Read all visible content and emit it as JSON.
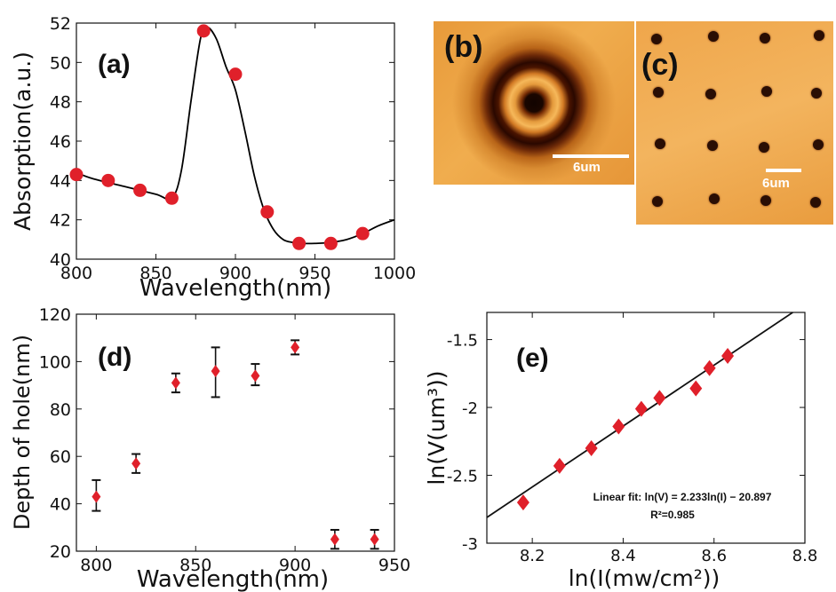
{
  "chart_data": [
    {
      "panel": "(a)",
      "type": "scatter",
      "xlabel": "Wavelength(nm)",
      "ylabel": "Absorption(a.u.)",
      "xlim": [
        800,
        1000
      ],
      "ylim": [
        40,
        52
      ],
      "xticks": [
        800,
        850,
        900,
        950,
        1000
      ],
      "yticks": [
        40,
        42,
        44,
        46,
        48,
        50,
        52
      ],
      "series": [
        {
          "role": "points",
          "color": "#e0202a",
          "x": [
            800,
            820,
            840,
            860,
            880,
            900,
            920,
            940,
            960,
            980
          ],
          "y": [
            44.3,
            44.0,
            43.5,
            43.1,
            51.6,
            49.4,
            42.4,
            40.8,
            40.8,
            41.3
          ]
        },
        {
          "role": "fit-curve",
          "color": "#000000",
          "x": [
            795,
            810,
            830,
            850,
            860,
            866,
            872,
            878,
            882,
            888,
            894,
            900,
            906,
            912,
            918,
            924,
            930,
            936,
            942,
            950,
            960,
            970,
            980,
            990,
            1000
          ],
          "y": [
            44.4,
            44.1,
            43.7,
            43.3,
            43.1,
            44.5,
            48.0,
            51.2,
            51.8,
            51.2,
            49.8,
            48.6,
            46.5,
            44.2,
            42.5,
            41.5,
            41.0,
            40.85,
            40.8,
            40.8,
            40.85,
            41.0,
            41.3,
            41.7,
            42.0
          ]
        }
      ]
    },
    {
      "panel": "(b)",
      "type": "image",
      "scale_bar": "6um"
    },
    {
      "panel": "(c)",
      "type": "image",
      "scale_bar": "6um"
    },
    {
      "panel": "(d)",
      "type": "scatter",
      "xlabel": "Wavelength(nm)",
      "ylabel": "Depth of hole(nm)",
      "xlim": [
        790,
        950
      ],
      "ylim": [
        20,
        120
      ],
      "xticks": [
        800,
        850,
        900,
        950
      ],
      "yticks": [
        20,
        40,
        60,
        80,
        100,
        120
      ],
      "color": "#e0202a",
      "x": [
        800,
        820,
        840,
        860,
        880,
        900,
        920,
        940
      ],
      "y": [
        43,
        57,
        91,
        96,
        94,
        106,
        25,
        25
      ],
      "err_low": [
        6,
        4,
        4,
        11,
        4,
        3,
        4,
        4
      ],
      "err_high": [
        7,
        4,
        4,
        10,
        5,
        3,
        4,
        4
      ]
    },
    {
      "panel": "(e)",
      "type": "scatter",
      "xlabel": "ln(I(mw/cm²))",
      "ylabel": "ln(V(um³))",
      "xlim": [
        8.1,
        8.8
      ],
      "ylim": [
        -3,
        -1.3
      ],
      "xticks": [
        8.2,
        8.4,
        8.6,
        8.8
      ],
      "xtick_labels": [
        "8.2",
        "8.4",
        "8.6",
        "8.8"
      ],
      "yticks": [
        -3,
        -2.5,
        -2,
        -1.5
      ],
      "ytick_labels": [
        "-3",
        "-2.5",
        "-2",
        "-1.5"
      ],
      "color": "#e0202a",
      "x": [
        8.18,
        8.26,
        8.33,
        8.39,
        8.44,
        8.48,
        8.56,
        8.59,
        8.63
      ],
      "y": [
        -2.7,
        -2.43,
        -2.3,
        -2.14,
        -2.01,
        -1.93,
        -1.86,
        -1.71,
        -1.62
      ],
      "fit_line": {
        "x": [
          8.1,
          8.8
        ],
        "y": [
          -2.81,
          -1.24
        ]
      },
      "annotation_fit": "Linear fit: ln(V) = 2.233ln(I) − 20.897",
      "annotation_r2": "R²=0.985"
    }
  ]
}
